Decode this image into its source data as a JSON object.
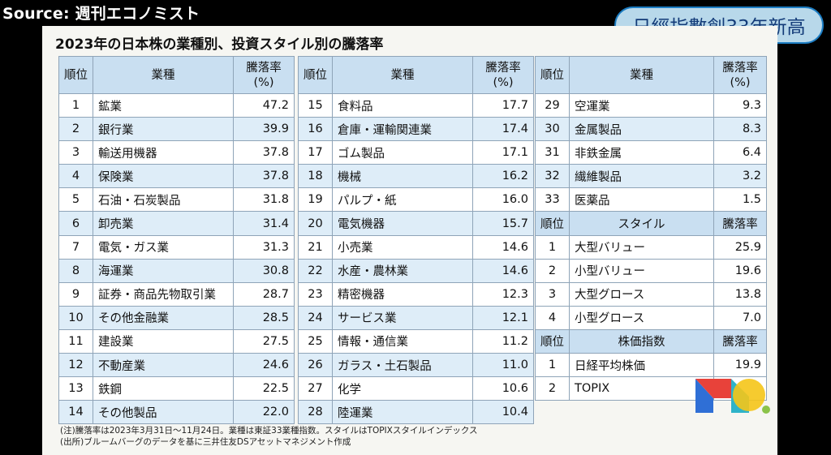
{
  "source_label": "Source: 週刊エコノミスト",
  "badge": "日經指數創33年新高",
  "title": "2023年の日本株の業種別、投資スタイル別の騰落率",
  "headers": {
    "rank": "順位",
    "sector": "業種",
    "change_l1": "騰落率",
    "change_l2": "(%)"
  },
  "col1": [
    {
      "rank": "1",
      "name": "鉱業",
      "value": "47.2"
    },
    {
      "rank": "2",
      "name": "銀行業",
      "value": "39.9"
    },
    {
      "rank": "3",
      "name": "輸送用機器",
      "value": "37.8"
    },
    {
      "rank": "4",
      "name": "保険業",
      "value": "37.8"
    },
    {
      "rank": "5",
      "name": "石油・石炭製品",
      "value": "31.8"
    },
    {
      "rank": "6",
      "name": "卸売業",
      "value": "31.4"
    },
    {
      "rank": "7",
      "name": "電気・ガス業",
      "value": "31.3"
    },
    {
      "rank": "8",
      "name": "海運業",
      "value": "30.8"
    },
    {
      "rank": "9",
      "name": "証券・商品先物取引業",
      "value": "28.7"
    },
    {
      "rank": "10",
      "name": "その他金融業",
      "value": "28.5"
    },
    {
      "rank": "11",
      "name": "建設業",
      "value": "27.5"
    },
    {
      "rank": "12",
      "name": "不動産業",
      "value": "24.6"
    },
    {
      "rank": "13",
      "name": "鉄鋼",
      "value": "22.5"
    },
    {
      "rank": "14",
      "name": "その他製品",
      "value": "22.0"
    }
  ],
  "col2": [
    {
      "rank": "15",
      "name": "食料品",
      "value": "17.7"
    },
    {
      "rank": "16",
      "name": "倉庫・運輸関連業",
      "value": "17.4"
    },
    {
      "rank": "17",
      "name": "ゴム製品",
      "value": "17.1"
    },
    {
      "rank": "18",
      "name": "機械",
      "value": "16.2"
    },
    {
      "rank": "19",
      "name": "パルプ・紙",
      "value": "16.0"
    },
    {
      "rank": "20",
      "name": "電気機器",
      "value": "15.7"
    },
    {
      "rank": "21",
      "name": "小売業",
      "value": "14.6"
    },
    {
      "rank": "22",
      "name": "水産・農林業",
      "value": "14.6"
    },
    {
      "rank": "23",
      "name": "精密機器",
      "value": "12.3"
    },
    {
      "rank": "24",
      "name": "サービス業",
      "value": "12.1"
    },
    {
      "rank": "25",
      "name": "情報・通信業",
      "value": "11.2"
    },
    {
      "rank": "26",
      "name": "ガラス・土石製品",
      "value": "11.0"
    },
    {
      "rank": "27",
      "name": "化学",
      "value": "10.6"
    },
    {
      "rank": "28",
      "name": "陸運業",
      "value": "10.4"
    }
  ],
  "col3": [
    {
      "rank": "29",
      "name": "空運業",
      "value": "9.3"
    },
    {
      "rank": "30",
      "name": "金属製品",
      "value": "8.3"
    },
    {
      "rank": "31",
      "name": "非鉄金属",
      "value": "6.4"
    },
    {
      "rank": "32",
      "name": "繊維製品",
      "value": "3.2"
    },
    {
      "rank": "33",
      "name": "医薬品",
      "value": "1.5"
    }
  ],
  "style_header": {
    "rank": "順位",
    "name": "スタイル",
    "value": "騰落率"
  },
  "styles": [
    {
      "rank": "1",
      "name": "大型バリュー",
      "value": "25.9"
    },
    {
      "rank": "2",
      "name": "小型バリュー",
      "value": "19.6"
    },
    {
      "rank": "3",
      "name": "大型グロース",
      "value": "13.8"
    },
    {
      "rank": "4",
      "name": "小型グロース",
      "value": "7.0"
    }
  ],
  "index_header": {
    "rank": "順位",
    "name": "株価指数",
    "value": "騰落率"
  },
  "indices": [
    {
      "rank": "1",
      "name": "日経平均株価",
      "value": "19.9"
    },
    {
      "rank": "2",
      "name": "TOPIX",
      "value": ""
    }
  ],
  "notes": [
    "(注)騰落率は2023年3月31日～11月24日。業種は東証33業種指数。スタイルはTOPIXスタイルインデックス",
    "(出所)ブルームバーグのデータを基に三井住友DSアセットマネジメント作成"
  ],
  "logo_colors": {
    "m_left": "#2f6fd6",
    "m_mid": "#e8423a",
    "m_right": "#2fb3c9",
    "circle": "#f5c518",
    "dot": "#8bc34a"
  }
}
